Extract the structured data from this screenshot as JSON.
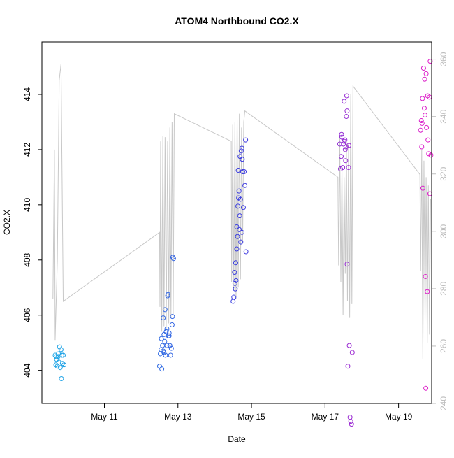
{
  "chart_data": {
    "type": "scatter",
    "title": "ATOM4 Northbound CO2.X",
    "xlabel": "Date",
    "ylabel": "CO2.X",
    "xlim": [
      9.3,
      19.9
    ],
    "ylim": [
      402.8,
      415.9
    ],
    "y2lim": [
      240,
      366
    ],
    "x_ticks": [
      11,
      13,
      15,
      17,
      19
    ],
    "x_tick_labels": [
      "May 11",
      "May 13",
      "May 15",
      "May 17",
      "May 19"
    ],
    "y_ticks": [
      404,
      406,
      408,
      410,
      412,
      414
    ],
    "y_tick_labels": [
      "404",
      "406",
      "408",
      "410",
      "412",
      "414"
    ],
    "y2_ticks": [
      240,
      260,
      280,
      300,
      320,
      340,
      360
    ],
    "y2_tick_labels": [
      "240",
      "260",
      "280",
      "300",
      "320",
      "340",
      "360"
    ],
    "grid": false,
    "colors": {
      "point_start": "#1fa8e6",
      "point_mid": "#3a3ae0",
      "point_end": "#e21ec8",
      "line": "#c8c8c8"
    },
    "scatter_series": [
      {
        "values": [
          [
            9.66,
            404.55
          ],
          [
            9.68,
            404.2
          ],
          [
            9.7,
            404.4
          ],
          [
            9.72,
            404.15
          ],
          [
            9.74,
            404.5
          ],
          [
            9.76,
            404.3
          ],
          [
            9.78,
            404.85
          ],
          [
            9.8,
            404.1
          ],
          [
            9.82,
            404.75
          ],
          [
            9.84,
            404.55
          ],
          [
            9.86,
            404.25
          ],
          [
            9.88,
            404.55
          ],
          [
            9.9,
            404.2
          ],
          [
            9.83,
            403.7
          ],
          [
            9.75,
            404.6
          ],
          [
            9.69,
            404.5
          ]
        ]
      },
      {
        "values": [
          [
            12.5,
            404.15
          ],
          [
            12.52,
            404.6
          ],
          [
            12.54,
            404.75
          ],
          [
            12.55,
            405.15
          ],
          [
            12.56,
            404.05
          ],
          [
            12.58,
            404.9
          ],
          [
            12.6,
            404.7
          ],
          [
            12.62,
            405.3
          ],
          [
            12.64,
            405.05
          ],
          [
            12.65,
            406.2
          ],
          [
            12.66,
            404.55
          ],
          [
            12.68,
            405.4
          ],
          [
            12.7,
            405.5
          ],
          [
            12.72,
            406.7
          ],
          [
            12.73,
            406.75
          ],
          [
            12.74,
            405.25
          ],
          [
            12.76,
            405.35
          ],
          [
            12.78,
            404.9
          ],
          [
            12.8,
            404.55
          ],
          [
            12.82,
            404.8
          ],
          [
            12.84,
            405.65
          ],
          [
            12.85,
            405.95
          ],
          [
            12.86,
            408.1
          ],
          [
            12.88,
            408.05
          ],
          [
            12.6,
            405.9
          ],
          [
            12.7,
            404.9
          ],
          [
            12.62,
            404.65
          ],
          [
            12.76,
            405.25
          ]
        ]
      },
      {
        "values": [
          [
            14.5,
            406.5
          ],
          [
            14.52,
            406.65
          ],
          [
            14.54,
            407.55
          ],
          [
            14.55,
            407.15
          ],
          [
            14.56,
            406.95
          ],
          [
            14.57,
            407.9
          ],
          [
            14.58,
            407.25
          ],
          [
            14.6,
            408.4
          ],
          [
            14.6,
            409.2
          ],
          [
            14.62,
            408.85
          ],
          [
            14.63,
            409.95
          ],
          [
            14.64,
            411.25
          ],
          [
            14.66,
            410.5
          ],
          [
            14.68,
            409.6
          ],
          [
            14.69,
            411.75
          ],
          [
            14.7,
            410.2
          ],
          [
            14.71,
            408.65
          ],
          [
            14.72,
            411.95
          ],
          [
            14.74,
            412.05
          ],
          [
            14.75,
            411.65
          ],
          [
            14.76,
            411.2
          ],
          [
            14.78,
            409.9
          ],
          [
            14.8,
            411.2
          ],
          [
            14.82,
            410.7
          ],
          [
            14.84,
            412.35
          ],
          [
            14.85,
            408.3
          ],
          [
            14.65,
            410.25
          ],
          [
            14.74,
            409.0
          ],
          [
            14.67,
            409.1
          ]
        ]
      },
      {
        "values": [
          [
            17.4,
            412.2
          ],
          [
            17.42,
            411.3
          ],
          [
            17.44,
            411.75
          ],
          [
            17.45,
            412.55
          ],
          [
            17.46,
            412.45
          ],
          [
            17.48,
            411.35
          ],
          [
            17.5,
            412.2
          ],
          [
            17.52,
            412.3
          ],
          [
            17.54,
            412.35
          ],
          [
            17.55,
            412.0
          ],
          [
            17.56,
            411.6
          ],
          [
            17.58,
            413.2
          ],
          [
            17.59,
            413.95
          ],
          [
            17.6,
            413.4
          ],
          [
            17.6,
            407.85
          ],
          [
            17.62,
            404.15
          ],
          [
            17.64,
            411.35
          ],
          [
            17.65,
            412.15
          ],
          [
            17.66,
            404.9
          ],
          [
            17.68,
            402.3
          ],
          [
            17.7,
            402.15
          ],
          [
            17.72,
            402.05
          ],
          [
            17.74,
            404.65
          ],
          [
            17.52,
            413.75
          ],
          [
            17.57,
            412.1
          ]
        ]
      },
      {
        "values": [
          [
            19.6,
            412.7
          ],
          [
            19.62,
            413.05
          ],
          [
            19.64,
            412.95
          ],
          [
            19.65,
            413.85
          ],
          [
            19.66,
            410.6
          ],
          [
            19.68,
            414.95
          ],
          [
            19.7,
            413.5
          ],
          [
            19.71,
            414.55
          ],
          [
            19.72,
            413.25
          ],
          [
            19.73,
            407.4
          ],
          [
            19.74,
            403.35
          ],
          [
            19.75,
            414.75
          ],
          [
            19.76,
            412.8
          ],
          [
            19.78,
            406.85
          ],
          [
            19.79,
            413.95
          ],
          [
            19.8,
            412.35
          ],
          [
            19.82,
            411.85
          ],
          [
            19.84,
            413.9
          ],
          [
            19.85,
            410.4
          ],
          [
            19.86,
            415.2
          ],
          [
            19.88,
            411.8
          ],
          [
            19.63,
            412.1
          ]
        ]
      }
    ],
    "line_series": [
      {
        "values": [
          [
            9.6,
            406.6
          ],
          [
            9.64,
            412.0
          ],
          [
            9.66,
            405.1
          ],
          [
            9.72,
            408.0
          ],
          [
            9.77,
            414.5
          ],
          [
            9.82,
            415.1
          ],
          [
            9.88,
            406.5
          ],
          [
            12.5,
            409.0
          ],
          [
            12.51,
            406.3
          ],
          [
            12.53,
            412.3
          ],
          [
            12.56,
            405.4
          ],
          [
            12.59,
            412.5
          ],
          [
            12.62,
            405.6
          ],
          [
            12.65,
            412.45
          ],
          [
            12.68,
            405.5
          ],
          [
            12.72,
            412.3
          ],
          [
            12.75,
            405.7
          ],
          [
            12.78,
            412.8
          ],
          [
            12.81,
            405.9
          ],
          [
            12.84,
            413.0
          ],
          [
            12.87,
            406.0
          ],
          [
            12.9,
            413.3
          ],
          [
            14.45,
            412.3
          ],
          [
            14.46,
            407.2
          ],
          [
            14.49,
            412.9
          ],
          [
            14.52,
            406.9
          ],
          [
            14.55,
            413.0
          ],
          [
            14.58,
            406.6
          ],
          [
            14.61,
            413.1
          ],
          [
            14.64,
            407.0
          ],
          [
            14.67,
            413.3
          ],
          [
            14.7,
            407.3
          ],
          [
            14.73,
            412.8
          ],
          [
            14.76,
            408.6
          ],
          [
            14.79,
            413.0
          ],
          [
            14.82,
            413.4
          ],
          [
            17.35,
            411.0
          ],
          [
            17.37,
            407.8
          ],
          [
            17.4,
            412.5
          ],
          [
            17.43,
            407.2
          ],
          [
            17.46,
            411.3
          ],
          [
            17.49,
            406.0
          ],
          [
            17.52,
            411.0
          ],
          [
            17.55,
            407.5
          ],
          [
            17.58,
            412.3
          ],
          [
            17.61,
            406.5
          ],
          [
            17.64,
            412.2
          ],
          [
            17.67,
            405.9
          ],
          [
            17.7,
            414.0
          ],
          [
            17.73,
            406.4
          ],
          [
            17.76,
            414.3
          ],
          [
            19.58,
            411.1
          ],
          [
            19.6,
            407.6
          ],
          [
            19.63,
            412.0
          ],
          [
            19.66,
            404.4
          ],
          [
            19.69,
            411.6
          ],
          [
            19.72,
            405.8
          ],
          [
            19.75,
            411.0
          ],
          [
            19.78,
            405.0
          ],
          [
            19.81,
            410.7
          ],
          [
            19.84,
            405.3
          ],
          [
            19.87,
            410.2
          ]
        ]
      }
    ]
  }
}
